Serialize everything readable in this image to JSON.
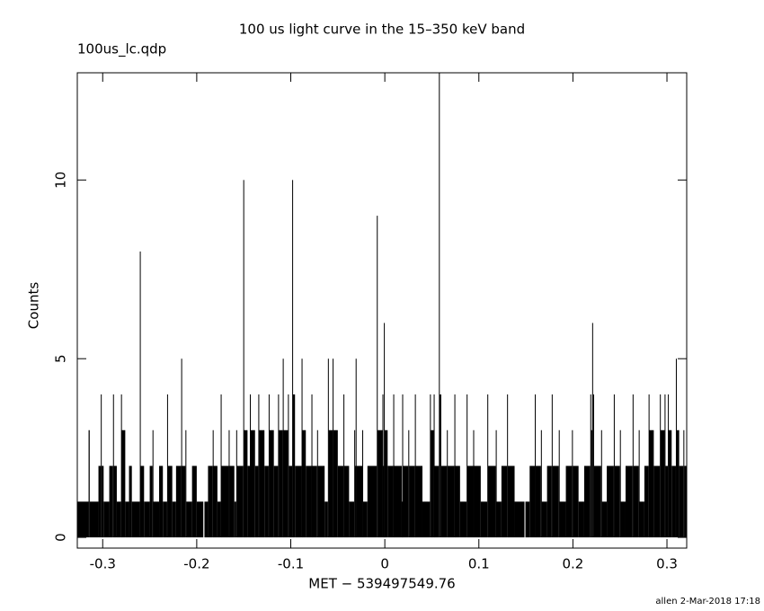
{
  "chart_data": {
    "type": "step",
    "title": "100 us light curve in the 15–350 keV band",
    "file_label": "100us_lc.qdp",
    "x_label": "MET − 539497549.76",
    "y_label": "Counts",
    "footer": "allen  2-Mar-2018 17:18",
    "color": "#000000",
    "xlim": [
      -0.327,
      0.321
    ],
    "ylim": [
      -0.3,
      13
    ],
    "xticks": [
      -0.3,
      -0.2,
      -0.1,
      0,
      0.1,
      0.2,
      0.3
    ],
    "yticks": [
      0,
      5,
      10
    ],
    "grid": false,
    "x": [
      -0.327,
      -0.315,
      -0.3138,
      -0.3045,
      -0.302,
      -0.3012,
      -0.299,
      -0.293,
      -0.289,
      -0.2882,
      -0.285,
      -0.2805,
      -0.2797,
      -0.276,
      -0.272,
      -0.269,
      -0.2605,
      -0.2597,
      -0.256,
      -0.25,
      -0.247,
      -0.2462,
      -0.24,
      -0.236,
      -0.2315,
      -0.2307,
      -0.226,
      -0.222,
      -0.2165,
      -0.2157,
      -0.212,
      -0.2112,
      -0.205,
      -0.2,
      -0.193,
      -0.1918,
      -0.188,
      -0.183,
      -0.1822,
      -0.178,
      -0.1745,
      -0.1737,
      -0.166,
      -0.1652,
      -0.16,
      -0.158,
      -0.1572,
      -0.1505,
      -0.1497,
      -0.146,
      -0.1435,
      -0.1427,
      -0.138,
      -0.1345,
      -0.1337,
      -0.128,
      -0.1235,
      -0.1227,
      -0.118,
      -0.1135,
      -0.1127,
      -0.1085,
      -0.1077,
      -0.103,
      -0.1022,
      -0.0985,
      -0.0977,
      -0.0955,
      -0.0885,
      -0.0877,
      -0.084,
      -0.078,
      -0.0772,
      -0.072,
      -0.0712,
      -0.064,
      -0.0605,
      -0.0597,
      -0.0555,
      -0.0547,
      -0.05,
      -0.044,
      -0.0432,
      -0.038,
      -0.0325,
      -0.0317,
      -0.031,
      -0.0302,
      -0.024,
      -0.0232,
      -0.0185,
      -0.0085,
      -0.0077,
      -0.0025,
      -0.0017,
      -0.001,
      -0.0002,
      0.003,
      0.009,
      0.0098,
      0.018,
      0.0185,
      0.0193,
      0.025,
      0.0258,
      0.032,
      0.0328,
      0.04,
      0.048,
      0.0488,
      0.052,
      0.0528,
      0.0575,
      0.0583,
      0.06,
      0.066,
      0.0668,
      0.074,
      0.0748,
      0.08,
      0.087,
      0.0878,
      0.094,
      0.0948,
      0.102,
      0.109,
      0.1098,
      0.118,
      0.1188,
      0.124,
      0.13,
      0.1308,
      0.138,
      0.1485,
      0.1495,
      0.154,
      0.1595,
      0.1603,
      0.166,
      0.1668,
      0.1725,
      0.1775,
      0.1783,
      0.185,
      0.1858,
      0.1925,
      0.199,
      0.1998,
      0.206,
      0.212,
      0.2185,
      0.2193,
      0.2205,
      0.2213,
      0.2225,
      0.23,
      0.2308,
      0.236,
      0.2435,
      0.2443,
      0.25,
      0.2508,
      0.256,
      0.2635,
      0.2643,
      0.27,
      0.2708,
      0.276,
      0.2805,
      0.2813,
      0.286,
      0.2925,
      0.2933,
      0.2975,
      0.2983,
      0.301,
      0.3018,
      0.305,
      0.3095,
      0.3103,
      0.313,
      0.3175,
      0.3183
    ],
    "values": [
      1,
      3,
      1,
      2,
      4,
      2,
      1,
      2,
      4,
      2,
      1,
      4,
      3,
      1,
      2,
      1,
      8,
      2,
      1,
      2,
      3,
      1,
      2,
      1,
      4,
      2,
      1,
      2,
      5,
      2,
      3,
      1,
      2,
      1,
      0,
      1,
      2,
      3,
      2,
      1,
      4,
      2,
      3,
      2,
      1,
      3,
      2,
      10,
      3,
      2,
      4,
      3,
      2,
      4,
      3,
      2,
      4,
      3,
      2,
      4,
      3,
      5,
      3,
      4,
      2,
      10,
      4,
      2,
      5,
      3,
      2,
      4,
      2,
      3,
      2,
      1,
      5,
      3,
      5,
      3,
      2,
      4,
      2,
      1,
      3,
      2,
      5,
      2,
      3,
      1,
      2,
      9,
      3,
      4,
      2,
      6,
      3,
      2,
      4,
      2,
      1,
      4,
      2,
      3,
      2,
      4,
      2,
      1,
      4,
      3,
      4,
      2,
      13,
      4,
      2,
      3,
      2,
      4,
      2,
      1,
      4,
      2,
      3,
      2,
      1,
      4,
      2,
      3,
      1,
      2,
      4,
      2,
      1,
      0,
      1,
      2,
      4,
      2,
      3,
      1,
      2,
      4,
      2,
      3,
      1,
      2,
      3,
      2,
      1,
      2,
      4,
      3,
      6,
      4,
      2,
      3,
      1,
      2,
      4,
      2,
      3,
      1,
      2,
      4,
      2,
      3,
      1,
      2,
      4,
      3,
      2,
      4,
      3,
      4,
      2,
      4,
      3,
      2,
      5,
      3,
      2,
      3,
      2
    ]
  }
}
